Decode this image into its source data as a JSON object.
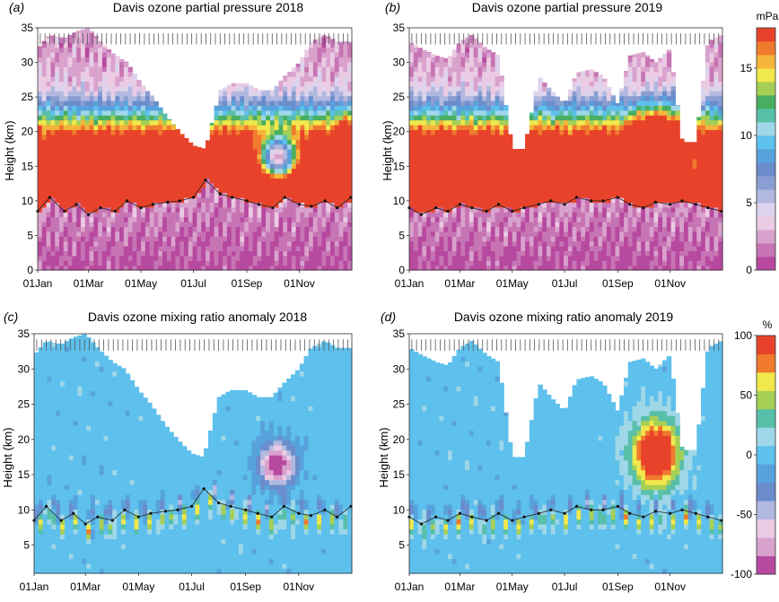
{
  "chart_data": [
    {
      "type": "heatmap",
      "panel_letter": "(a)",
      "title": "Davis ozone partial pressure 2018",
      "ylabel": "Height (km)",
      "xlabel": "",
      "x_ticks": [
        "01Jan",
        "01Mar",
        "01May",
        "01Jul",
        "01Sep",
        "01Nov"
      ],
      "y_ticks": [
        0,
        5,
        10,
        15,
        20,
        25,
        30,
        35
      ],
      "ylim": [
        0,
        35
      ],
      "variable": "ozone partial pressure",
      "features": [
        {
          "desc": "tropopause",
          "dates": [
            "01Jan",
            "15Jan",
            "01Feb",
            "15Feb",
            "01Mar",
            "15Mar",
            "01Apr",
            "15Apr",
            "01May",
            "15May",
            "01Jun",
            "15Jun",
            "01Jul",
            "15Jul",
            "01Aug",
            "15Aug",
            "01Sep",
            "15Sep",
            "01Oct",
            "15Oct",
            "01Nov",
            "15Nov",
            "01Dec",
            "15Dec",
            "31Dec"
          ],
          "height_km": [
            8.5,
            10.5,
            8.5,
            9.5,
            8,
            9,
            8.5,
            10,
            9,
            9.5,
            9.8,
            10,
            10.5,
            13,
            11,
            10.5,
            10,
            9.5,
            9,
            10.5,
            9.5,
            9.2,
            10,
            9,
            10.5
          ]
        },
        {
          "desc": "ozone maximum",
          "height_range_km": [
            14,
            22
          ],
          "peak_mPa": 18
        },
        {
          "desc": "ozone hole depletion",
          "period": [
            "01Sep",
            "15Nov"
          ],
          "height_range_km": [
            13,
            20
          ]
        }
      ],
      "data_top_km": [
        32,
        34,
        33.5,
        34.5,
        35,
        33,
        31,
        30,
        27,
        25,
        22,
        20,
        18,
        17.5,
        26,
        27,
        27,
        26,
        26,
        28,
        30,
        33,
        34,
        33,
        33
      ]
    },
    {
      "type": "heatmap",
      "panel_letter": "(b)",
      "title": "Davis ozone partial pressure 2019",
      "ylabel": "Height (km)",
      "xlabel": "",
      "x_ticks": [
        "01Jan",
        "01Mar",
        "01May",
        "01Jul",
        "01Sep",
        "01Nov"
      ],
      "y_ticks": [
        0,
        5,
        10,
        15,
        20,
        25,
        30,
        35
      ],
      "ylim": [
        0,
        35
      ],
      "colorbar": {
        "label": "mPa",
        "ticks": [
          0,
          5,
          10,
          15
        ],
        "range": [
          0,
          18
        ]
      },
      "features": [
        {
          "desc": "tropopause",
          "dates": [
            "01Jan",
            "15Jan",
            "01Feb",
            "15Feb",
            "01Mar",
            "15Mar",
            "01Apr",
            "15Apr",
            "01May",
            "15May",
            "01Jun",
            "15Jun",
            "01Jul",
            "15Jul",
            "01Aug",
            "15Aug",
            "01Sep",
            "15Sep",
            "01Oct",
            "15Oct",
            "01Nov",
            "15Nov",
            "01Dec",
            "15Dec",
            "31Dec"
          ],
          "height_km": [
            9,
            8,
            9,
            8.5,
            9.5,
            9,
            8.5,
            9.5,
            8.5,
            9,
            9.5,
            10,
            9.5,
            10.5,
            10,
            10,
            10.5,
            9.5,
            9,
            9.8,
            9.5,
            10,
            9.5,
            9,
            8.5
          ]
        },
        {
          "desc": "high ozone (sudden stratospheric warming)",
          "period": [
            "01Sep",
            "01Dec"
          ],
          "height_range_km": [
            15,
            25
          ],
          "peak_mPa": 18
        }
      ],
      "data_top_km": [
        33,
        32,
        31,
        30.5,
        33,
        34,
        32,
        31,
        17.5,
        17.5,
        28,
        26,
        24,
        28.5,
        29,
        28,
        24,
        31,
        31.5,
        30,
        32,
        18.5,
        18.5,
        33,
        34
      ]
    },
    {
      "type": "heatmap",
      "panel_letter": "(c)",
      "title": "Davis ozone mixing ratio anomaly 2018",
      "ylabel": "Height (km)",
      "xlabel": "",
      "x_ticks": [
        "01Jan",
        "01Mar",
        "01May",
        "01Jul",
        "01Sep",
        "01Nov"
      ],
      "y_ticks": [
        5,
        10,
        15,
        20,
        25,
        30,
        35
      ],
      "ylim": [
        1,
        35
      ],
      "variable": "ozone mixing ratio anomaly",
      "features": [
        {
          "desc": "negative anomaly (ozone hole)",
          "period": [
            "01Sep",
            "01Nov"
          ],
          "height_range_km": [
            14,
            20
          ],
          "anomaly_pct": -100
        },
        {
          "desc": "positive anomalies near tropopause",
          "height_range_km": [
            7,
            10
          ],
          "anomaly_pct": 100
        }
      ],
      "data_top_km": [
        32,
        34,
        33.5,
        34.5,
        35,
        33,
        31,
        30,
        27,
        25,
        22,
        20,
        18,
        17.5,
        26,
        27,
        27,
        26,
        26,
        28,
        30,
        33,
        34,
        33,
        33
      ]
    },
    {
      "type": "heatmap",
      "panel_letter": "(d)",
      "title": "Davis ozone mixing ratio anomaly 2019",
      "ylabel": "Height (km)",
      "xlabel": "",
      "x_ticks": [
        "01Jan",
        "01Mar",
        "01May",
        "01Jul",
        "01Sep",
        "01Nov"
      ],
      "y_ticks": [
        5,
        10,
        15,
        20,
        25,
        30,
        35
      ],
      "ylim": [
        1,
        35
      ],
      "colorbar": {
        "label": "%",
        "ticks": [
          -100,
          -50,
          0,
          50,
          100
        ],
        "range": [
          -100,
          100
        ]
      },
      "features": [
        {
          "desc": "positive anomaly (sudden stratospheric warming)",
          "period": [
            "01Sep",
            "01Nov"
          ],
          "height_range_km": [
            12,
            24
          ],
          "anomaly_pct": 100
        }
      ],
      "data_top_km": [
        33,
        32,
        31,
        30.5,
        33,
        34,
        32,
        31,
        17.5,
        17.5,
        28,
        26,
        24,
        28.5,
        29,
        28,
        24,
        31,
        31.5,
        30,
        32,
        18.5,
        18.5,
        33,
        34
      ]
    }
  ],
  "palettes": {
    "ozone": [
      "#b7499f",
      "#c774b4",
      "#d9a2cd",
      "#ebcbe3",
      "#ddd3ec",
      "#b2b9e0",
      "#8a9ed3",
      "#6b8dcc",
      "#57a2dd",
      "#5ec0ec",
      "#9fd7e8",
      "#58bfa9",
      "#49ae62",
      "#a6cf55",
      "#f1e84c",
      "#f6b43a",
      "#f07a2e",
      "#e8432a"
    ],
    "anomaly": [
      "#b7499f",
      "#d9a2cd",
      "#ebcbe3",
      "#b2b9e0",
      "#6b8dcc",
      "#57a2dd",
      "#5ec0ec",
      "#9fd7e8",
      "#58bfa9",
      "#a6cf55",
      "#f1e84c",
      "#f07a2e",
      "#e8432a"
    ]
  }
}
